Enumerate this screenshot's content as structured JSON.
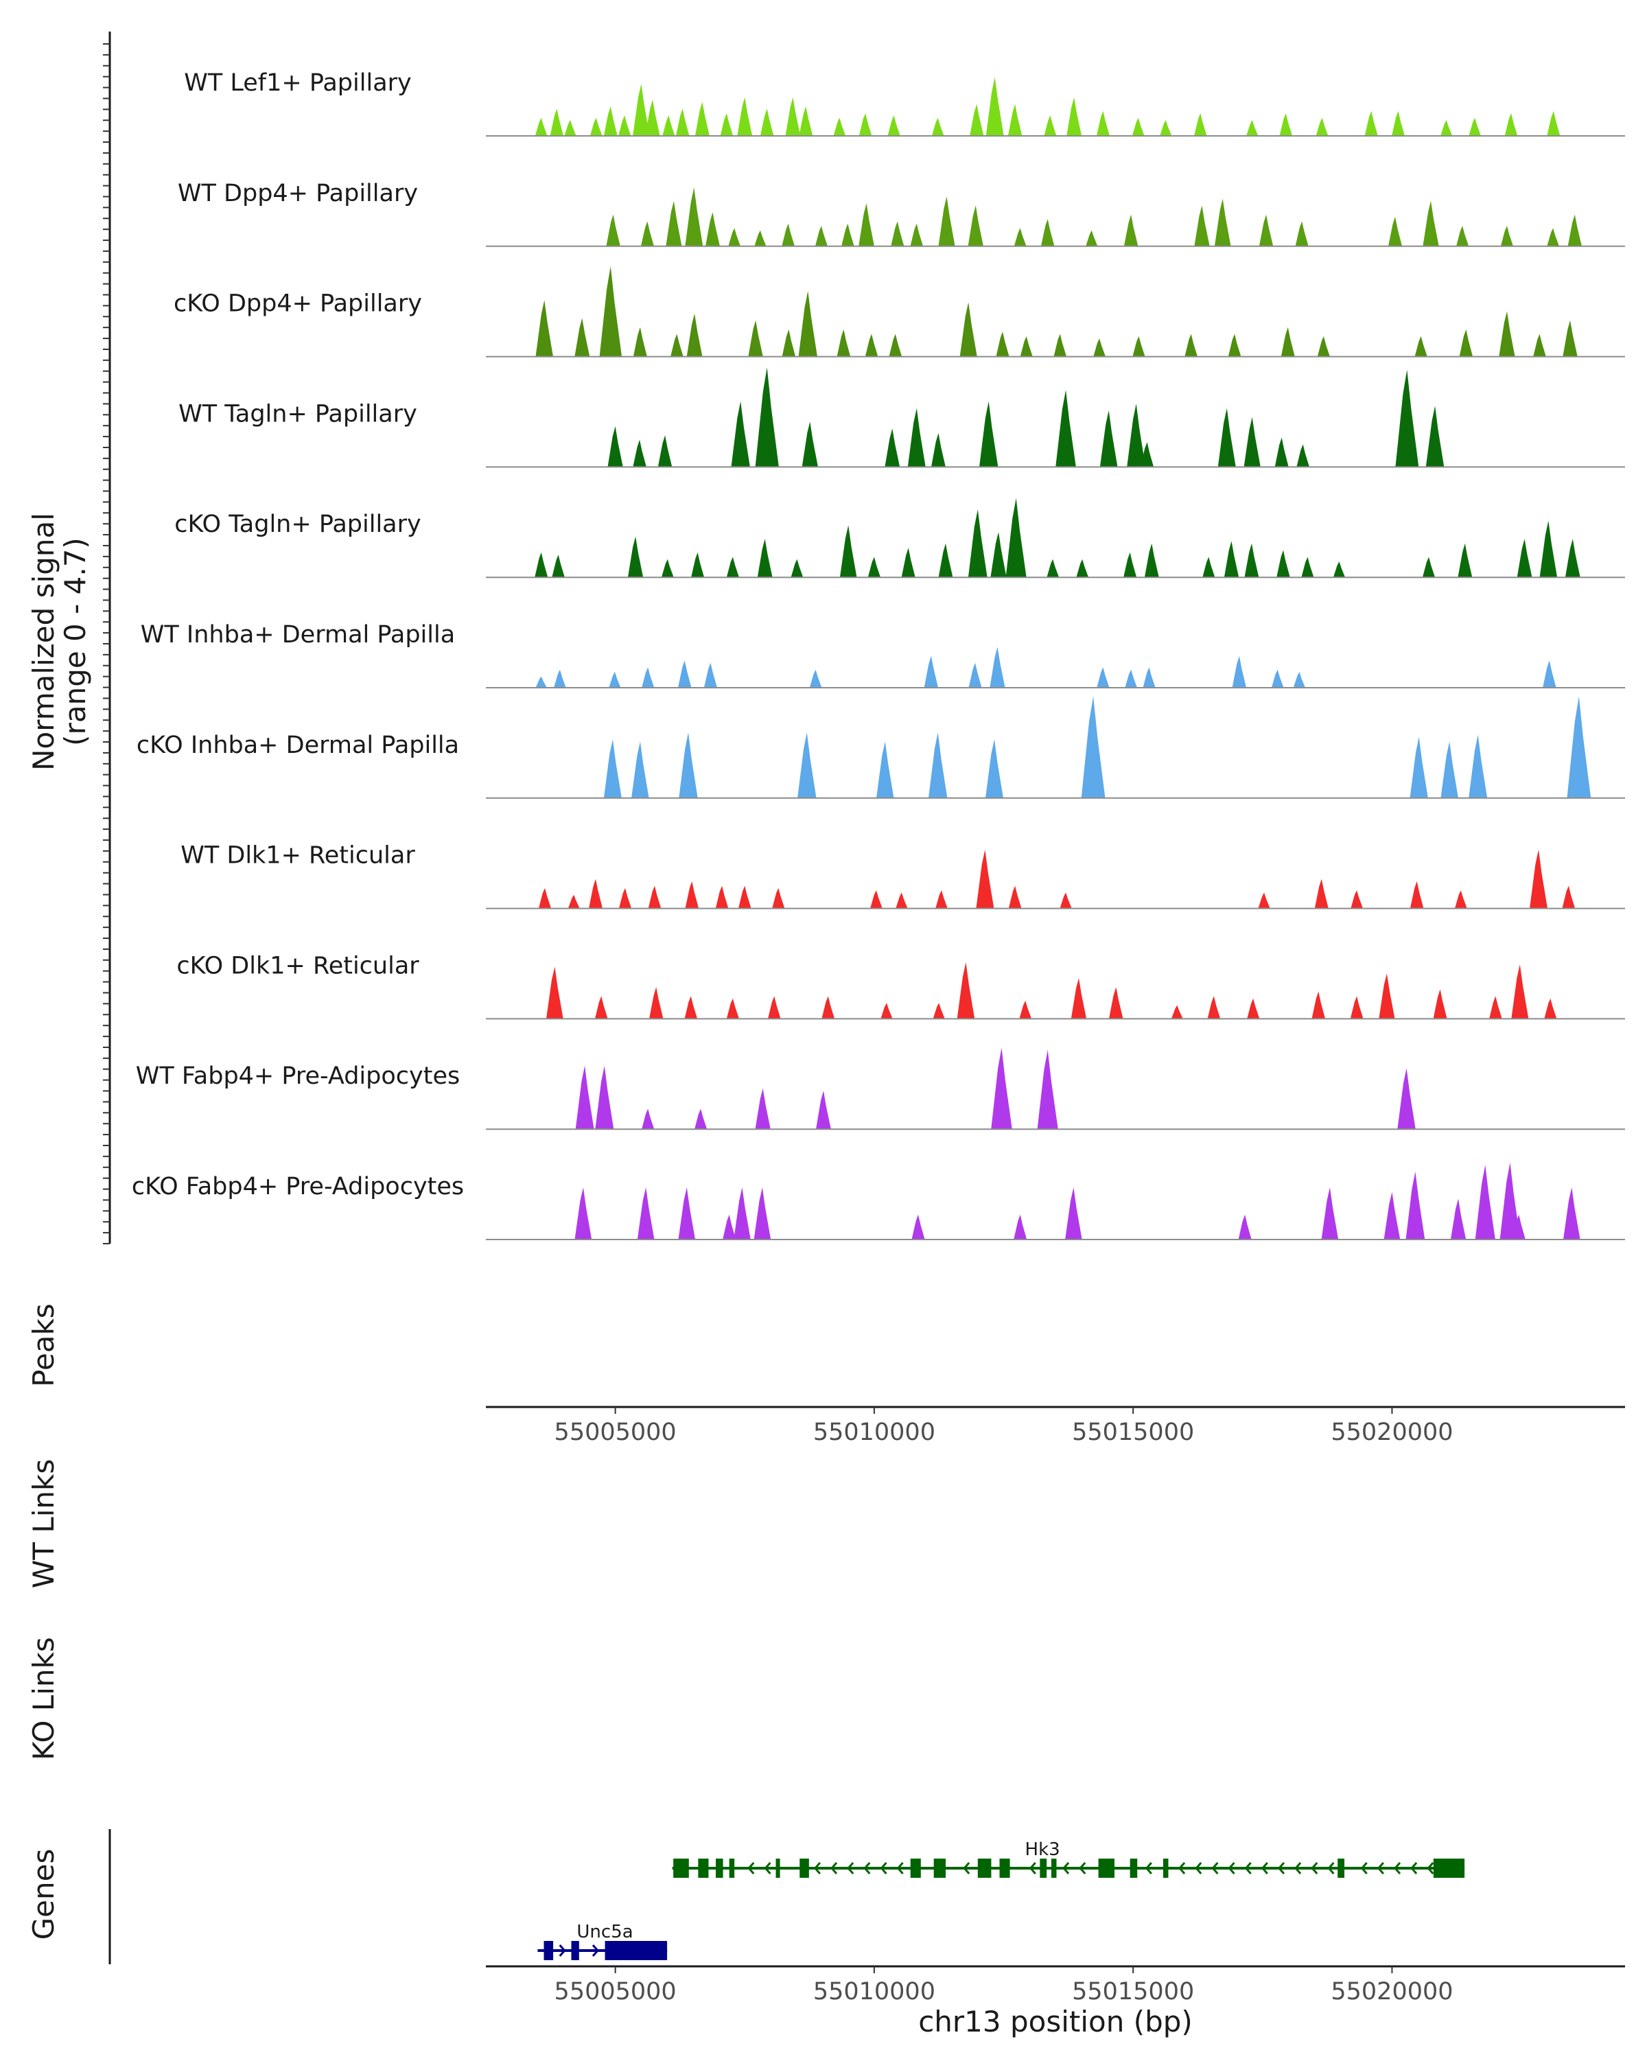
{
  "chart_data": {
    "type": "genome-coverage",
    "chromosome": "chr13",
    "x_range": [
      55002500,
      55024500
    ],
    "x_ticks": [
      55005000,
      55010000,
      55015000,
      55020000
    ],
    "x_tick_labels": [
      "55005000",
      "55010000",
      "55015000",
      "55020000"
    ],
    "xlabel": "chr13 position (bp)",
    "ylabel_line1": "Normalized signal",
    "ylabel_line2": "(range 0 - 4.7)",
    "y_range": [
      0,
      4.7
    ],
    "side_labels": {
      "peaks": "Peaks",
      "wt_links": "WT Links",
      "ko_links": "KO Links",
      "genes": "Genes"
    },
    "tracks": [
      {
        "name": "WT Lef1+ Papillary",
        "color": "#7CDB17",
        "peaks": [
          [
            55003570,
            0.8
          ],
          [
            55003870,
            1.2
          ],
          [
            55004130,
            0.7
          ],
          [
            55004630,
            0.8
          ],
          [
            55004910,
            1.3
          ],
          [
            55005180,
            0.9
          ],
          [
            55005500,
            2.3
          ],
          [
            55005720,
            1.6
          ],
          [
            55006030,
            0.9
          ],
          [
            55006300,
            1.2
          ],
          [
            55006680,
            1.5
          ],
          [
            55007150,
            1.0
          ],
          [
            55007500,
            1.7
          ],
          [
            55007930,
            1.2
          ],
          [
            55008430,
            1.7
          ],
          [
            55008680,
            1.3
          ],
          [
            55009330,
            0.8
          ],
          [
            55009830,
            1.0
          ],
          [
            55010380,
            0.9
          ],
          [
            55011230,
            0.8
          ],
          [
            55011980,
            1.4
          ],
          [
            55012330,
            2.6
          ],
          [
            55012720,
            1.4
          ],
          [
            55013400,
            0.9
          ],
          [
            55013860,
            1.7
          ],
          [
            55014420,
            1.1
          ],
          [
            55015100,
            0.8
          ],
          [
            55015630,
            0.7
          ],
          [
            55016300,
            1.0
          ],
          [
            55017300,
            0.7
          ],
          [
            55017950,
            1.0
          ],
          [
            55018650,
            0.8
          ],
          [
            55019600,
            1.1
          ],
          [
            55020120,
            1.1
          ],
          [
            55021050,
            0.7
          ],
          [
            55021600,
            0.8
          ],
          [
            55022300,
            1.0
          ],
          [
            55023120,
            1.1
          ]
        ]
      },
      {
        "name": "WT Dpp4+ Papillary",
        "color": "#5A9E12",
        "peaks": [
          [
            55004960,
            1.4
          ],
          [
            55005620,
            1.1
          ],
          [
            55006130,
            2.0
          ],
          [
            55006520,
            2.6
          ],
          [
            55006880,
            1.5
          ],
          [
            55007300,
            0.8
          ],
          [
            55007800,
            0.7
          ],
          [
            55008340,
            1.0
          ],
          [
            55008980,
            0.9
          ],
          [
            55009490,
            1.0
          ],
          [
            55009850,
            1.9
          ],
          [
            55010450,
            1.1
          ],
          [
            55010820,
            1.0
          ],
          [
            55011400,
            2.2
          ],
          [
            55011960,
            1.8
          ],
          [
            55012820,
            0.8
          ],
          [
            55013350,
            1.2
          ],
          [
            55014200,
            0.7
          ],
          [
            55014960,
            1.4
          ],
          [
            55016330,
            1.8
          ],
          [
            55016730,
            2.1
          ],
          [
            55017570,
            1.4
          ],
          [
            55018260,
            1.1
          ],
          [
            55020060,
            1.3
          ],
          [
            55020750,
            2.0
          ],
          [
            55021360,
            0.9
          ],
          [
            55022220,
            0.9
          ],
          [
            55023110,
            0.8
          ],
          [
            55023530,
            1.4
          ]
        ]
      },
      {
        "name": "cKO Dpp4+ Papillary",
        "color": "#4F8E0F",
        "peaks": [
          [
            55003630,
            2.5
          ],
          [
            55004360,
            1.7
          ],
          [
            55004910,
            4.0
          ],
          [
            55005480,
            1.3
          ],
          [
            55006190,
            1.0
          ],
          [
            55006530,
            1.9
          ],
          [
            55007710,
            1.6
          ],
          [
            55008350,
            1.2
          ],
          [
            55008720,
            2.9
          ],
          [
            55009410,
            1.2
          ],
          [
            55009950,
            1.0
          ],
          [
            55010410,
            1.0
          ],
          [
            55011820,
            2.4
          ],
          [
            55012480,
            1.1
          ],
          [
            55012940,
            0.9
          ],
          [
            55013590,
            1.0
          ],
          [
            55014350,
            0.8
          ],
          [
            55015110,
            0.9
          ],
          [
            55016120,
            1.0
          ],
          [
            55016960,
            1.0
          ],
          [
            55017990,
            1.3
          ],
          [
            55018680,
            0.9
          ],
          [
            55020560,
            0.9
          ],
          [
            55021430,
            1.2
          ],
          [
            55022220,
            2.0
          ],
          [
            55022850,
            1.0
          ],
          [
            55023440,
            1.6
          ]
        ]
      },
      {
        "name": "WT Tagln+ Papillary",
        "color": "#0B6B0B",
        "peaks": [
          [
            55005000,
            1.8
          ],
          [
            55005470,
            1.2
          ],
          [
            55005960,
            1.4
          ],
          [
            55007420,
            2.9
          ],
          [
            55007930,
            4.4
          ],
          [
            55008760,
            2.0
          ],
          [
            55010350,
            1.7
          ],
          [
            55010820,
            2.6
          ],
          [
            55011240,
            1.5
          ],
          [
            55012210,
            2.9
          ],
          [
            55013700,
            3.4
          ],
          [
            55014530,
            2.5
          ],
          [
            55015060,
            2.8
          ],
          [
            55015270,
            1.1
          ],
          [
            55016810,
            2.6
          ],
          [
            55017300,
            2.2
          ],
          [
            55017870,
            1.3
          ],
          [
            55018280,
            1.0
          ],
          [
            55020290,
            4.3
          ],
          [
            55020830,
            2.7
          ]
        ]
      },
      {
        "name": "cKO Tagln+ Papillary",
        "color": "#0B6B0B",
        "peaks": [
          [
            55003570,
            1.1
          ],
          [
            55003900,
            1.0
          ],
          [
            55005390,
            1.8
          ],
          [
            55006010,
            0.8
          ],
          [
            55006590,
            1.1
          ],
          [
            55007270,
            0.9
          ],
          [
            55007890,
            1.7
          ],
          [
            55008510,
            0.8
          ],
          [
            55009500,
            2.3
          ],
          [
            55010000,
            0.9
          ],
          [
            55010660,
            1.3
          ],
          [
            55011380,
            1.5
          ],
          [
            55012000,
            3.0
          ],
          [
            55012400,
            2.0
          ],
          [
            55012740,
            3.5
          ],
          [
            55013450,
            0.8
          ],
          [
            55014020,
            0.8
          ],
          [
            55014940,
            1.1
          ],
          [
            55015360,
            1.5
          ],
          [
            55016460,
            0.9
          ],
          [
            55016900,
            1.6
          ],
          [
            55017290,
            1.5
          ],
          [
            55017900,
            1.2
          ],
          [
            55018370,
            0.9
          ],
          [
            55018980,
            0.7
          ],
          [
            55020710,
            0.9
          ],
          [
            55021410,
            1.5
          ],
          [
            55022560,
            1.7
          ],
          [
            55023020,
            2.5
          ],
          [
            55023490,
            1.7
          ]
        ]
      },
      {
        "name": "WT Inhba+ Dermal Papilla",
        "color": "#5DA9E9",
        "peaks": [
          [
            55003570,
            0.5
          ],
          [
            55003930,
            0.8
          ],
          [
            55004990,
            0.7
          ],
          [
            55005630,
            0.9
          ],
          [
            55006340,
            1.2
          ],
          [
            55006840,
            1.1
          ],
          [
            55008870,
            0.8
          ],
          [
            55011100,
            1.4
          ],
          [
            55011950,
            1.1
          ],
          [
            55012380,
            1.8
          ],
          [
            55014420,
            0.9
          ],
          [
            55014960,
            0.8
          ],
          [
            55015310,
            0.9
          ],
          [
            55017050,
            1.4
          ],
          [
            55017790,
            0.8
          ],
          [
            55018210,
            0.7
          ],
          [
            55023040,
            1.2
          ]
        ]
      },
      {
        "name": "cKO Inhba+ Dermal Papilla",
        "color": "#5DA9E9",
        "peaks": [
          [
            55004950,
            2.6
          ],
          [
            55005480,
            2.5
          ],
          [
            55006410,
            2.9
          ],
          [
            55008700,
            2.9
          ],
          [
            55010210,
            2.5
          ],
          [
            55011230,
            2.9
          ],
          [
            55012320,
            2.6
          ],
          [
            55014230,
            4.5
          ],
          [
            55020520,
            2.7
          ],
          [
            55021110,
            2.5
          ],
          [
            55021660,
            2.8
          ],
          [
            55023610,
            4.5
          ]
        ]
      },
      {
        "name": "WT Dlk1+ Reticular",
        "color": "#F22A2A",
        "peaks": [
          [
            55003640,
            0.9
          ],
          [
            55004200,
            0.6
          ],
          [
            55004620,
            1.3
          ],
          [
            55005190,
            0.9
          ],
          [
            55005760,
            1.0
          ],
          [
            55006480,
            1.2
          ],
          [
            55007060,
            1.0
          ],
          [
            55007500,
            1.0
          ],
          [
            55008150,
            0.9
          ],
          [
            55010040,
            0.8
          ],
          [
            55010530,
            0.7
          ],
          [
            55011300,
            0.8
          ],
          [
            55012140,
            2.6
          ],
          [
            55012720,
            1.0
          ],
          [
            55013700,
            0.7
          ],
          [
            55017530,
            0.7
          ],
          [
            55018640,
            1.3
          ],
          [
            55019320,
            0.8
          ],
          [
            55020480,
            1.2
          ],
          [
            55021330,
            0.8
          ],
          [
            55022830,
            2.6
          ],
          [
            55023410,
            1.0
          ]
        ]
      },
      {
        "name": "cKO Dlk1+ Reticular",
        "color": "#F22A2A",
        "peaks": [
          [
            55003830,
            2.3
          ],
          [
            55004730,
            1.0
          ],
          [
            55005790,
            1.4
          ],
          [
            55006460,
            1.0
          ],
          [
            55007270,
            0.9
          ],
          [
            55008070,
            1.0
          ],
          [
            55009110,
            1.0
          ],
          [
            55010240,
            0.7
          ],
          [
            55011250,
            0.7
          ],
          [
            55011770,
            2.5
          ],
          [
            55012920,
            0.8
          ],
          [
            55013950,
            1.8
          ],
          [
            55014670,
            1.4
          ],
          [
            55015850,
            0.6
          ],
          [
            55016560,
            1.0
          ],
          [
            55017320,
            0.9
          ],
          [
            55018580,
            1.2
          ],
          [
            55019320,
            1.0
          ],
          [
            55019900,
            2.0
          ],
          [
            55020930,
            1.3
          ],
          [
            55022000,
            1.0
          ],
          [
            55022470,
            2.4
          ],
          [
            55023060,
            0.9
          ]
        ]
      },
      {
        "name": "WT Fabp4+ Pre-Adipocytes",
        "color": "#B03AEB",
        "peaks": [
          [
            55004410,
            2.8
          ],
          [
            55004790,
            2.8
          ],
          [
            55005630,
            0.9
          ],
          [
            55006650,
            0.9
          ],
          [
            55007850,
            1.8
          ],
          [
            55009020,
            1.7
          ],
          [
            55012460,
            3.6
          ],
          [
            55013350,
            3.5
          ],
          [
            55020280,
            2.7
          ]
        ]
      },
      {
        "name": "cKO Fabp4+ Pre-Adipocytes",
        "color": "#B03AEB",
        "peaks": [
          [
            55004380,
            2.3
          ],
          [
            55005590,
            2.3
          ],
          [
            55006380,
            2.3
          ],
          [
            55007200,
            1.1
          ],
          [
            55007450,
            2.3
          ],
          [
            55007840,
            2.3
          ],
          [
            55010850,
            1.1
          ],
          [
            55012820,
            1.1
          ],
          [
            55013850,
            2.3
          ],
          [
            55017160,
            1.1
          ],
          [
            55018800,
            2.3
          ],
          [
            55020000,
            2.1
          ],
          [
            55020450,
            3.0
          ],
          [
            55021280,
            1.8
          ],
          [
            55021800,
            3.3
          ],
          [
            55022280,
            3.4
          ],
          [
            55022450,
            1.1
          ],
          [
            55023470,
            2.3
          ]
        ]
      }
    ],
    "genes": [
      {
        "name": "Hk3",
        "strand": "-",
        "color": "#006400",
        "start": 55006100,
        "end": 55021400,
        "exons": [
          [
            55006120,
            55006420
          ],
          [
            55006600,
            55006800
          ],
          [
            55006940,
            55007080
          ],
          [
            55007200,
            55007300
          ],
          [
            55008100,
            55008180
          ],
          [
            55008560,
            55008740
          ],
          [
            55010700,
            55010900
          ],
          [
            55011150,
            55011380
          ],
          [
            55012000,
            55012260
          ],
          [
            55012420,
            55012620
          ],
          [
            55013200,
            55013330
          ],
          [
            55013420,
            55013520
          ],
          [
            55014330,
            55014640
          ],
          [
            55014940,
            55015080
          ],
          [
            55015580,
            55015680
          ],
          [
            55018950,
            55019080
          ],
          [
            55020800,
            55021400
          ]
        ]
      },
      {
        "name": "Unc5a",
        "strand": "+",
        "color": "#00008B",
        "start": 55003500,
        "end": 55006000,
        "exons": [
          [
            55003620,
            55003800
          ],
          [
            55004150,
            55004300
          ],
          [
            55004800,
            55006000
          ]
        ]
      }
    ]
  }
}
